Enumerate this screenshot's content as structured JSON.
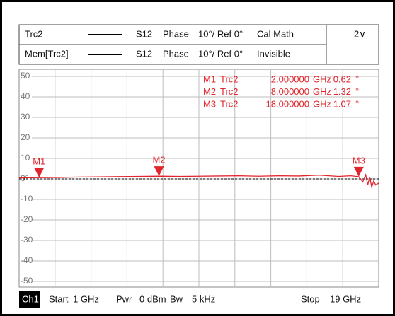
{
  "header": {
    "rows": [
      {
        "trace": "Trc2",
        "param": "S12",
        "format": "Phase",
        "scale": "10°/ Ref 0°",
        "status": "Cal Math"
      },
      {
        "trace": "Mem[Trc2]",
        "param": "S12",
        "format": "Phase",
        "scale": "10°/ Ref 0°",
        "status": "Invisible"
      }
    ],
    "channel_menu": "2∨"
  },
  "chart_data": {
    "type": "line",
    "xlim": [
      1,
      19
    ],
    "ylim": [
      -50,
      50
    ],
    "yticks": [
      50,
      40,
      30,
      20,
      10,
      {
        "value": 0,
        "label": "0°"
      },
      -10,
      -20,
      -30,
      -40,
      -50
    ],
    "grid": true,
    "series": [
      {
        "name": "Trc2",
        "color": "#e0262c",
        "x": [
          1,
          2,
          3,
          4,
          5,
          6,
          7,
          8,
          9,
          10,
          11,
          12,
          13,
          14,
          15,
          16,
          17,
          17.6,
          18,
          18.2,
          18.35,
          18.45,
          18.55,
          18.65,
          18.75,
          18.85,
          19
        ],
        "values": [
          0.5,
          0.62,
          0.7,
          0.9,
          1.0,
          1.1,
          1.2,
          1.32,
          1.2,
          1.3,
          1.4,
          1.5,
          1.3,
          1.5,
          1.4,
          1.8,
          1.2,
          1.5,
          1.07,
          -1.5,
          2,
          -3,
          1,
          -4,
          -1,
          -3,
          -2
        ]
      }
    ],
    "markers": [
      {
        "name": "M1",
        "trace": "Trc2",
        "x": "2.000000",
        "unit": "GHz",
        "x_value": 2,
        "value": 0.62,
        "value_label": "0.62",
        "value_unit": "°"
      },
      {
        "name": "M2",
        "trace": "Trc2",
        "x": "8.000000",
        "unit": "GHz",
        "x_value": 8,
        "value": 1.32,
        "value_label": "1.32",
        "value_unit": "°"
      },
      {
        "name": "M3",
        "trace": "Trc2",
        "x": "18.000000",
        "unit": "GHz",
        "x_value": 18,
        "value": 1.07,
        "value_label": "1.07",
        "value_unit": "°"
      }
    ]
  },
  "footer": {
    "channel": "Ch1",
    "items": [
      "Start",
      "1 GHz",
      "Pwr",
      "0 dBm",
      "Bw",
      "5 kHz",
      "Stop",
      "19 GHz"
    ]
  }
}
